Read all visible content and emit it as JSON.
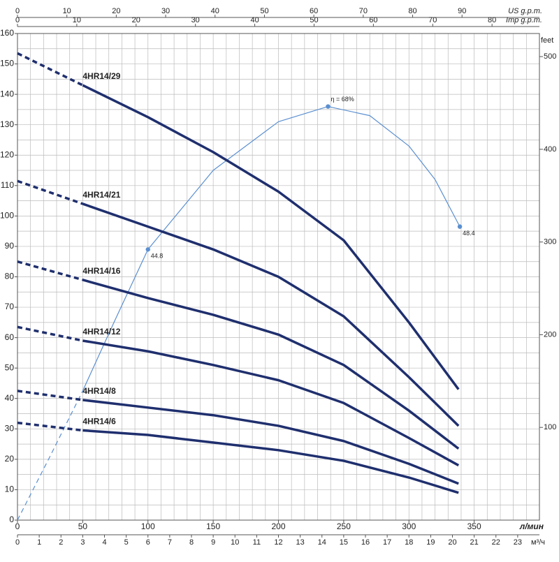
{
  "chart_data": {
    "type": "line",
    "xlim": [
      0,
      400
    ],
    "xticks": [
      0,
      50,
      100,
      150,
      200,
      250,
      300,
      350
    ],
    "xlabel": "л/мин",
    "ylim": [
      0,
      160
    ],
    "yticks": [
      0,
      10,
      20,
      30,
      40,
      50,
      60,
      70,
      80,
      90,
      100,
      110,
      120,
      130,
      140,
      150,
      160
    ],
    "xgrid": [
      10,
      20,
      30,
      40,
      50,
      60,
      70,
      80,
      90,
      100,
      110,
      120,
      130,
      140,
      150,
      160,
      170,
      180,
      190,
      200,
      210,
      220,
      230,
      240,
      250,
      260,
      270,
      280,
      290,
      300,
      310,
      320,
      330,
      340,
      350,
      360,
      370,
      380,
      390
    ],
    "ygrid": [
      5,
      10,
      15,
      20,
      25,
      30,
      35,
      40,
      45,
      50,
      55,
      60,
      65,
      70,
      75,
      80,
      85,
      90,
      95,
      100,
      105,
      110,
      115,
      120,
      125,
      130,
      135,
      140,
      145,
      150,
      155
    ],
    "y2lim": [
      0,
      524.9
    ],
    "y2ticks": [
      100,
      200,
      300,
      400,
      500
    ],
    "y2label": "feet",
    "top_axes": [
      {
        "label": "US g.p.m.",
        "lim": [
          0,
          105.67
        ],
        "ticks": [
          0,
          10,
          20,
          30,
          40,
          50,
          60,
          70,
          80,
          90
        ]
      },
      {
        "label": "Imp g.p.m.",
        "lim": [
          0,
          87.99
        ],
        "ticks": [
          0,
          10,
          20,
          30,
          40,
          50,
          60,
          70,
          80
        ]
      }
    ],
    "bottom_axis": {
      "label": "м³/ч",
      "lim": [
        0,
        24
      ],
      "ticks": [
        0,
        1,
        2,
        3,
        4,
        5,
        6,
        7,
        8,
        9,
        10,
        11,
        12,
        13,
        14,
        15,
        16,
        17,
        18,
        19,
        20,
        21,
        22,
        23
      ]
    },
    "dashed_below_x": 50,
    "series": [
      {
        "name": "4HR14/29",
        "color": "#1f2f6e",
        "x": [
          0,
          50,
          100,
          150,
          200,
          250,
          300,
          338
        ],
        "values": [
          153.5,
          143,
          132.5,
          121,
          108,
          92,
          65,
          43
        ]
      },
      {
        "name": "4HR14/21",
        "color": "#1f2f6e",
        "x": [
          0,
          50,
          100,
          150,
          200,
          250,
          300,
          338
        ],
        "values": [
          111.5,
          104,
          96.5,
          89,
          80,
          67,
          47,
          31
        ]
      },
      {
        "name": "4HR14/16",
        "color": "#1f2f6e",
        "x": [
          0,
          50,
          100,
          150,
          200,
          250,
          300,
          338
        ],
        "values": [
          85,
          79,
          73,
          67.5,
          61,
          51,
          36,
          23.5
        ]
      },
      {
        "name": "4HR14/12",
        "color": "#1f2f6e",
        "x": [
          0,
          50,
          100,
          150,
          200,
          250,
          300,
          338
        ],
        "values": [
          63.5,
          59,
          55.5,
          51,
          46,
          38.5,
          27,
          18
        ]
      },
      {
        "name": "4HR14/8",
        "color": "#1f2f6e",
        "x": [
          0,
          50,
          100,
          150,
          200,
          250,
          300,
          338
        ],
        "values": [
          42.5,
          39.5,
          37,
          34.5,
          31,
          26,
          18.5,
          12
        ]
      },
      {
        "name": "4HR14/6",
        "color": "#1f2f6e",
        "x": [
          0,
          50,
          100,
          150,
          200,
          250,
          300,
          338
        ],
        "values": [
          32,
          29.5,
          28,
          25.5,
          23,
          19.5,
          14,
          9
        ]
      }
    ],
    "efficiency": {
      "color": "#5b8fd0",
      "x": [
        0,
        25,
        50,
        75,
        100,
        150,
        200,
        238,
        270,
        300,
        320,
        339
      ],
      "values": [
        0,
        21,
        42.5,
        66,
        89,
        115,
        131,
        136,
        133,
        123,
        112,
        96.5
      ],
      "annotations": [
        {
          "x": 100,
          "y": 89,
          "text": "44.8"
        },
        {
          "x": 238,
          "y": 136,
          "text": "η = 68%"
        },
        {
          "x": 339,
          "y": 96.5,
          "text": "48.4"
        }
      ]
    }
  }
}
